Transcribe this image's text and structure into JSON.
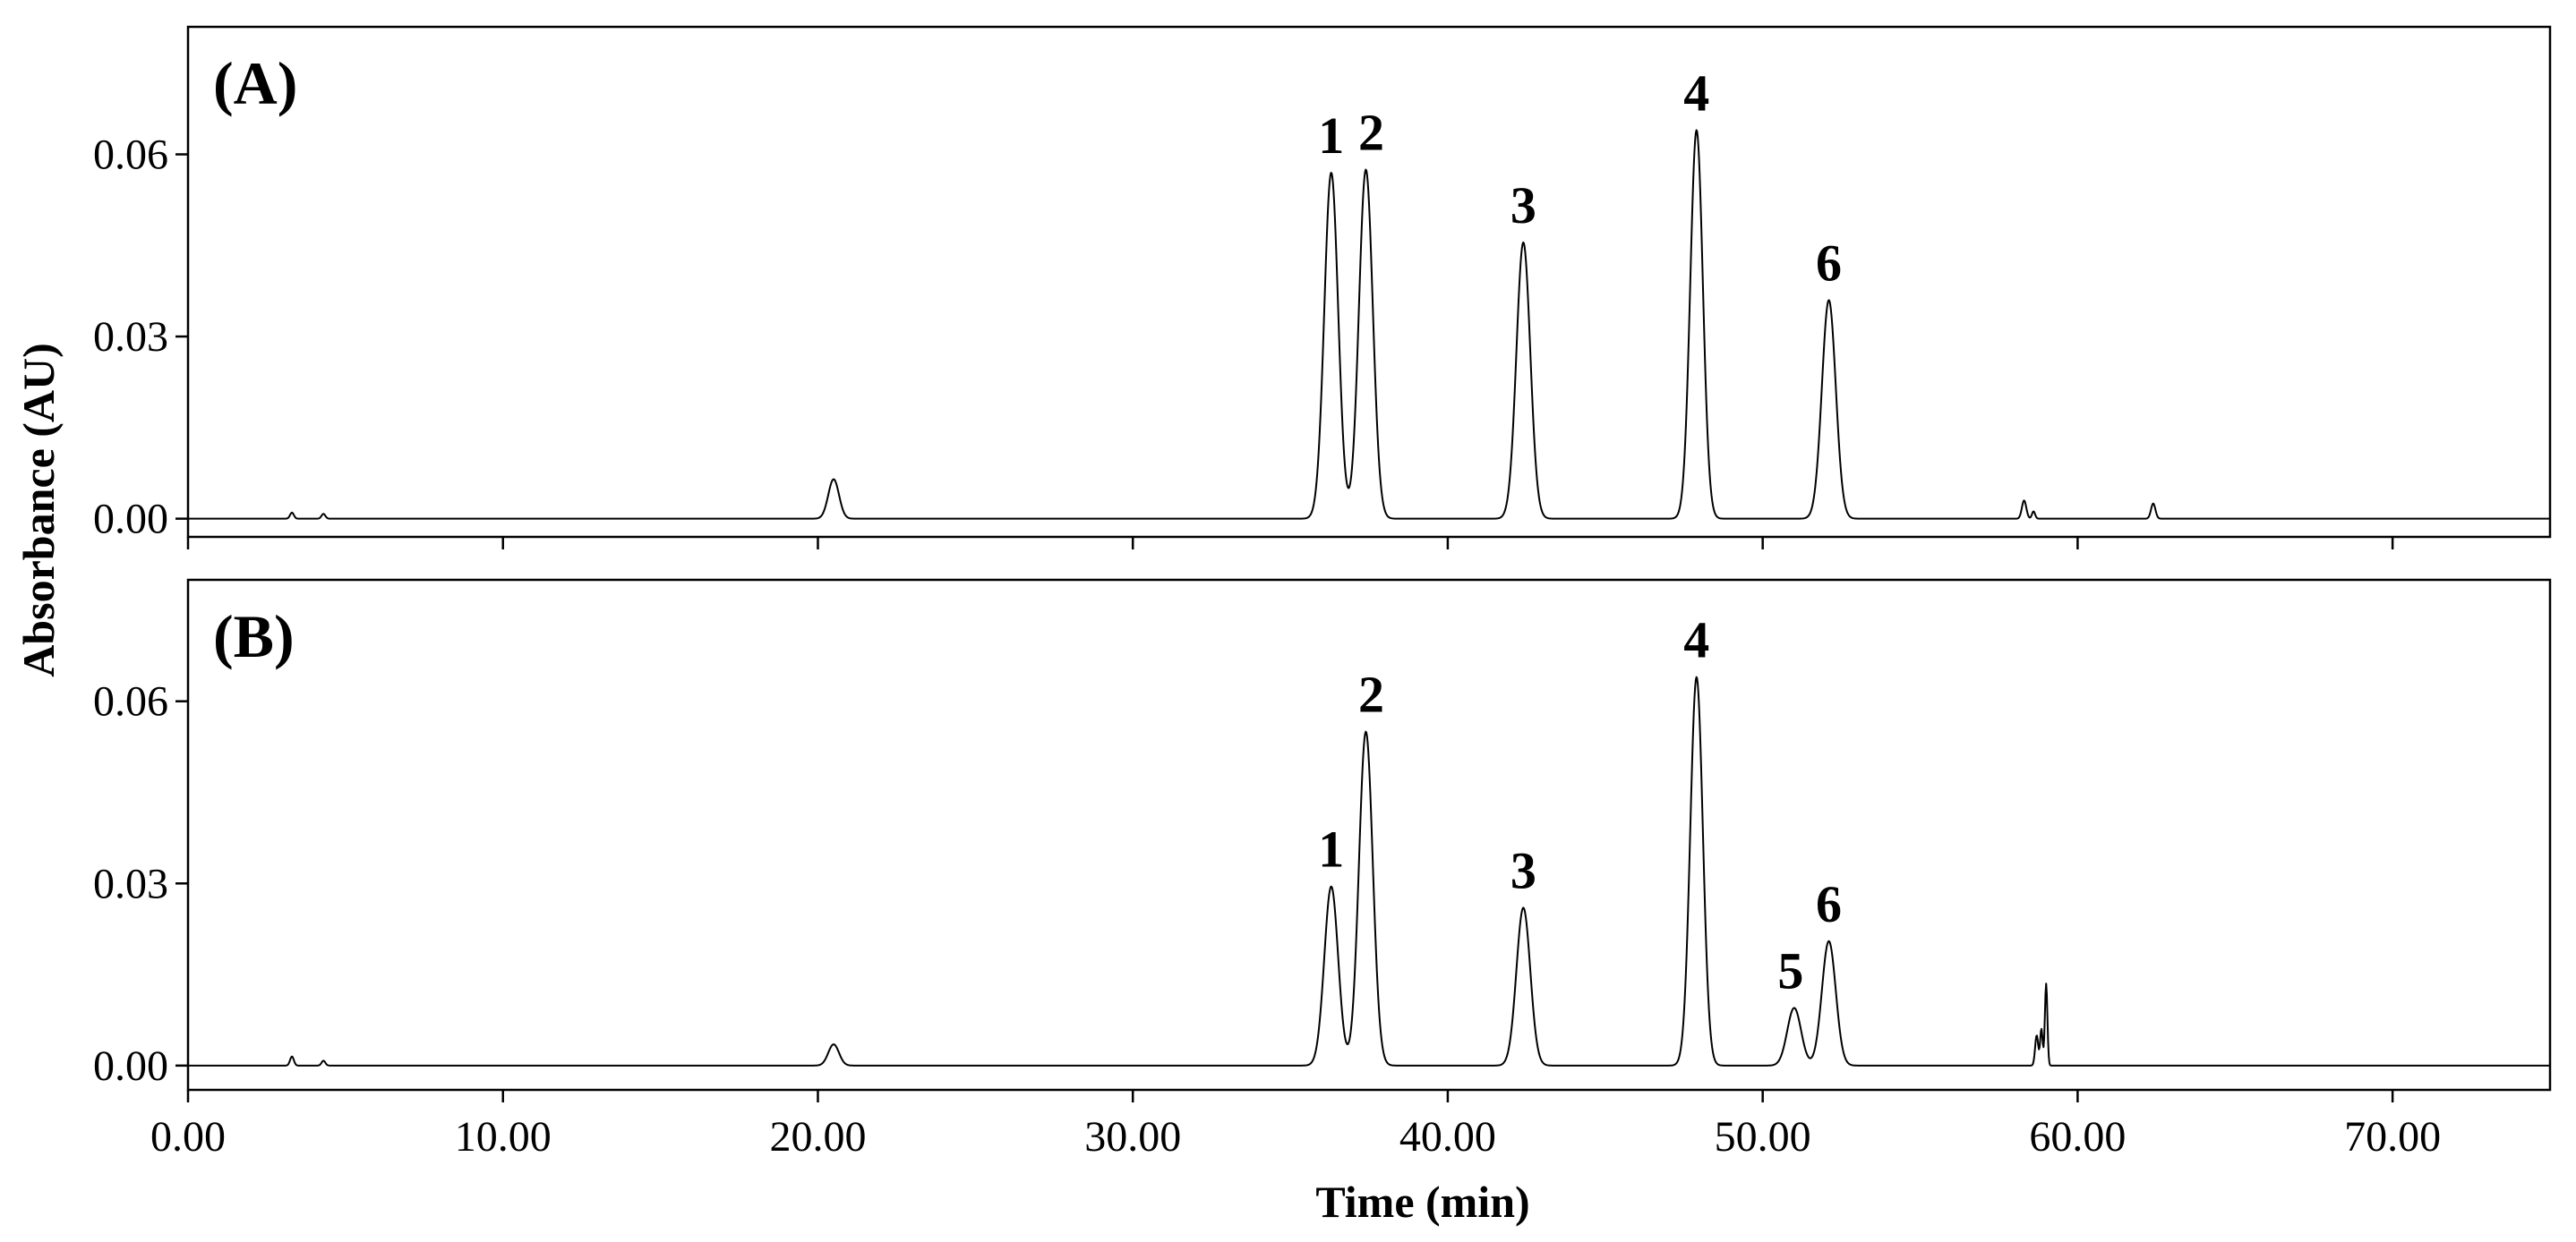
{
  "chart_data": {
    "type": "line",
    "xlabel": "Time (min)",
    "ylabel": "Absorbance (AU)",
    "xlim": [
      0,
      75
    ],
    "x_ticks": [
      "0.00",
      "10.00",
      "20.00",
      "30.00",
      "40.00",
      "50.00",
      "60.00",
      "70.00"
    ],
    "x_tick_values": [
      0,
      10,
      20,
      30,
      40,
      50,
      60,
      70
    ],
    "grid": false,
    "legend": "none",
    "panels": [
      {
        "label": "(A)",
        "ylim": [
          -0.003,
          0.081
        ],
        "y_ticks": [
          "0.00",
          "0.03",
          "0.06"
        ],
        "y_tick_values": [
          0.0,
          0.03,
          0.06
        ],
        "peaks": [
          {
            "label": "",
            "time": 3.3,
            "height": 0.001,
            "width": 0.06
          },
          {
            "label": "",
            "time": 4.3,
            "height": 0.0008,
            "width": 0.06
          },
          {
            "label": "",
            "time": 20.5,
            "height": 0.0065,
            "width": 0.17
          },
          {
            "label": "1",
            "time": 36.3,
            "height": 0.057,
            "width": 0.22
          },
          {
            "label": "2",
            "time": 37.4,
            "height": 0.0575,
            "width": 0.22
          },
          {
            "label": "3",
            "time": 42.4,
            "height": 0.0455,
            "width": 0.22
          },
          {
            "label": "4",
            "time": 47.9,
            "height": 0.064,
            "width": 0.2
          },
          {
            "label": "6",
            "time": 52.1,
            "height": 0.036,
            "width": 0.22
          },
          {
            "label": "",
            "time": 58.3,
            "height": 0.003,
            "width": 0.07
          },
          {
            "label": "",
            "time": 58.6,
            "height": 0.0012,
            "width": 0.05
          },
          {
            "label": "",
            "time": 62.4,
            "height": 0.0025,
            "width": 0.07
          }
        ]
      },
      {
        "label": "(B)",
        "ylim": [
          -0.004,
          0.08
        ],
        "y_ticks": [
          "0.00",
          "0.03",
          "0.06"
        ],
        "y_tick_values": [
          0.0,
          0.03,
          0.06
        ],
        "peaks": [
          {
            "label": "",
            "time": 3.3,
            "height": 0.0015,
            "width": 0.06
          },
          {
            "label": "",
            "time": 4.3,
            "height": 0.0008,
            "width": 0.06
          },
          {
            "label": "",
            "time": 20.5,
            "height": 0.0035,
            "width": 0.17
          },
          {
            "label": "1",
            "time": 36.3,
            "height": 0.0295,
            "width": 0.22
          },
          {
            "label": "2",
            "time": 37.4,
            "height": 0.055,
            "width": 0.22
          },
          {
            "label": "3",
            "time": 42.4,
            "height": 0.026,
            "width": 0.22
          },
          {
            "label": "4",
            "time": 47.9,
            "height": 0.064,
            "width": 0.2
          },
          {
            "label": "5",
            "time": 51.0,
            "height": 0.0095,
            "width": 0.22
          },
          {
            "label": "6",
            "time": 52.1,
            "height": 0.0205,
            "width": 0.22
          },
          {
            "label": "",
            "time": 58.7,
            "height": 0.005,
            "width": 0.05
          },
          {
            "label": "",
            "time": 58.85,
            "height": 0.006,
            "width": 0.04
          },
          {
            "label": "",
            "time": 59.0,
            "height": 0.0135,
            "width": 0.04
          }
        ]
      }
    ]
  }
}
